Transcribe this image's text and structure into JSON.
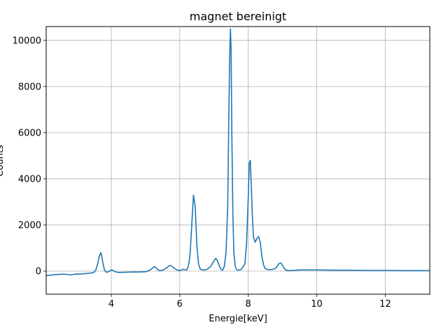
{
  "chart_data": {
    "type": "line",
    "title": "magnet bereinigt",
    "xlabel": "Energie[keV]",
    "ylabel": "Counts",
    "xlim": [
      2.1,
      13.3
    ],
    "ylim": [
      -1000,
      10600
    ],
    "xticks": [
      4,
      6,
      8,
      10,
      12
    ],
    "yticks": [
      0,
      2000,
      4000,
      6000,
      8000,
      10000
    ],
    "grid": true,
    "legend": "none",
    "color": "#1f77b4",
    "series": [
      {
        "x": [
          2.1,
          2.2,
          2.3,
          2.4,
          2.5,
          2.6,
          2.7,
          2.8,
          2.9,
          3.0,
          3.1,
          3.2,
          3.3,
          3.4,
          3.5,
          3.55,
          3.6,
          3.65,
          3.7,
          3.75,
          3.8,
          3.85,
          3.9,
          3.95,
          4.0,
          4.05,
          4.1,
          4.2,
          4.4,
          4.6,
          4.8,
          5.0,
          5.1,
          5.2,
          5.25,
          5.3,
          5.4,
          5.5,
          5.6,
          5.7,
          5.75,
          5.8,
          5.9,
          6.0,
          6.1,
          6.15,
          6.2,
          6.25,
          6.3,
          6.35,
          6.4,
          6.45,
          6.5,
          6.55,
          6.6,
          6.7,
          6.8,
          6.9,
          7.0,
          7.05,
          7.1,
          7.15,
          7.2,
          7.25,
          7.3,
          7.35,
          7.4,
          7.43,
          7.46,
          7.48,
          7.5,
          7.52,
          7.55,
          7.58,
          7.62,
          7.66,
          7.7,
          7.8,
          7.9,
          7.95,
          8.0,
          8.03,
          8.06,
          8.09,
          8.12,
          8.15,
          8.2,
          8.25,
          8.3,
          8.35,
          8.4,
          8.45,
          8.5,
          8.6,
          8.7,
          8.8,
          8.9,
          8.95,
          9.0,
          9.05,
          9.1,
          9.2,
          9.3,
          9.4,
          9.5,
          10.0,
          10.5,
          11.0,
          11.5,
          12.0,
          12.5,
          13.0,
          13.3
        ],
        "y": [
          -200,
          -180,
          -160,
          -150,
          -140,
          -130,
          -140,
          -170,
          -140,
          -120,
          -130,
          -110,
          -100,
          -90,
          -50,
          50,
          300,
          650,
          800,
          400,
          50,
          -50,
          -40,
          10,
          50,
          30,
          -20,
          -60,
          -50,
          -40,
          -40,
          -30,
          20,
          120,
          200,
          150,
          20,
          40,
          120,
          240,
          230,
          170,
          60,
          20,
          80,
          60,
          50,
          200,
          700,
          2000,
          3300,
          2800,
          1100,
          300,
          80,
          40,
          80,
          200,
          450,
          550,
          450,
          250,
          80,
          40,
          200,
          800,
          2800,
          6500,
          9500,
          10500,
          9500,
          6000,
          2500,
          800,
          200,
          60,
          40,
          80,
          300,
          1200,
          3200,
          4700,
          4800,
          3600,
          2400,
          1500,
          1250,
          1400,
          1500,
          1250,
          600,
          250,
          100,
          60,
          70,
          120,
          330,
          350,
          250,
          120,
          40,
          20,
          30,
          40,
          50,
          50,
          40,
          40,
          30,
          30,
          20,
          20,
          20
        ]
      }
    ]
  }
}
